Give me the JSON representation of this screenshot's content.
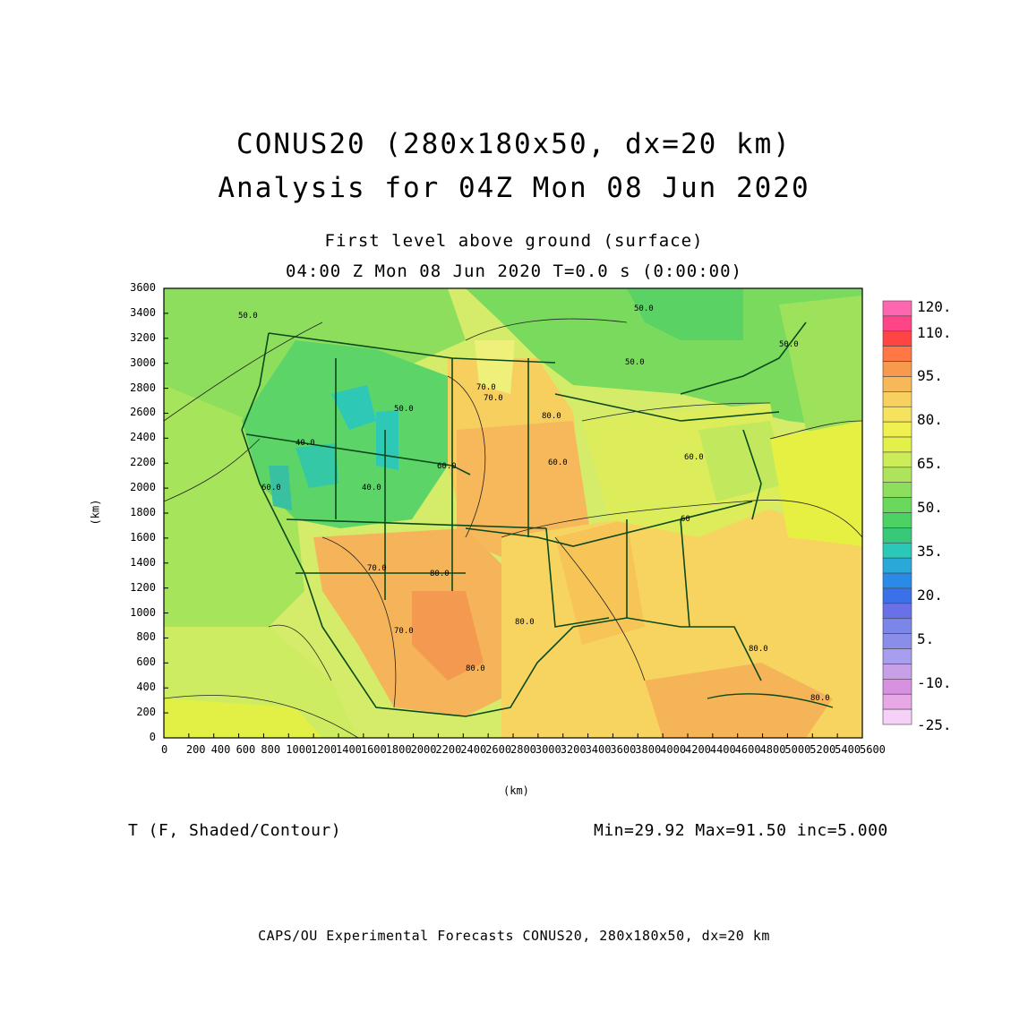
{
  "title_line1": "CONUS20 (280x180x50, dx=20 km)",
  "title_line2": "Analysis for 04Z Mon 08 Jun 2020",
  "subtitle_line1": "First level above ground (surface)",
  "subtitle_line2": "04:00 Z Mon 08 Jun 2020    T=0.0 s (0:00:00)",
  "axes": {
    "y_unit": "(km)",
    "x_unit": "(km)",
    "y_range": [
      0,
      3600
    ],
    "x_range": [
      0,
      5600
    ],
    "y_ticks": [
      "0",
      "200",
      "400",
      "600",
      "800",
      "1000",
      "1200",
      "1400",
      "1600",
      "1800",
      "2000",
      "2200",
      "2400",
      "2600",
      "2800",
      "3000",
      "3200",
      "3400",
      "3600"
    ],
    "x_ticks": [
      "0",
      "200",
      "400",
      "600",
      "800",
      "1000",
      "1200",
      "1400",
      "1600",
      "1800",
      "2000",
      "2200",
      "2400",
      "2600",
      "2800",
      "3000",
      "3200",
      "3400",
      "3600",
      "3800",
      "4000",
      "4200",
      "4400",
      "4600",
      "4800",
      "5000",
      "5200",
      "5400",
      "5600"
    ]
  },
  "colorbar": {
    "labels": [
      "120.",
      "110.",
      "95.",
      "80.",
      "65.",
      "50.",
      "35.",
      "20.",
      "5.",
      "-10.",
      "-25."
    ],
    "colors": [
      "#ff66b2",
      "#ff4488",
      "#ff4444",
      "#ff7744",
      "#f79a4e",
      "#f7b85a",
      "#f7d060",
      "#f5e35e",
      "#f0f050",
      "#e4f04a",
      "#ccec5a",
      "#aee45c",
      "#8cde5c",
      "#6ad85c",
      "#4cd264",
      "#38c87a",
      "#2ac8b8",
      "#2aa8d8",
      "#2a8ae8",
      "#3a70e8",
      "#6a70e8",
      "#7a86e8",
      "#8a8ee8",
      "#a89ef0",
      "#c8a0e8",
      "#d890e0",
      "#e8a8e8",
      "#f6d0f6"
    ]
  },
  "contour_labels": [
    "50.0",
    "50.0",
    "50.0",
    "70.0",
    "70.0",
    "60.0",
    "50.0",
    "40.0",
    "40.0",
    "60.0",
    "60.0",
    "80.0",
    "80.0",
    "80.0",
    "80.0",
    "60",
    "70.0",
    "70.0",
    "80.0",
    "80.0",
    "50.0",
    "60.0"
  ],
  "field_label": "T (F, Shaded/Contour)",
  "stats": "Min=29.92 Max=91.50 inc=5.000",
  "footer": "CAPS/OU Experimental Forecasts   CONUS20, 280x180x50, dx=20 km"
}
